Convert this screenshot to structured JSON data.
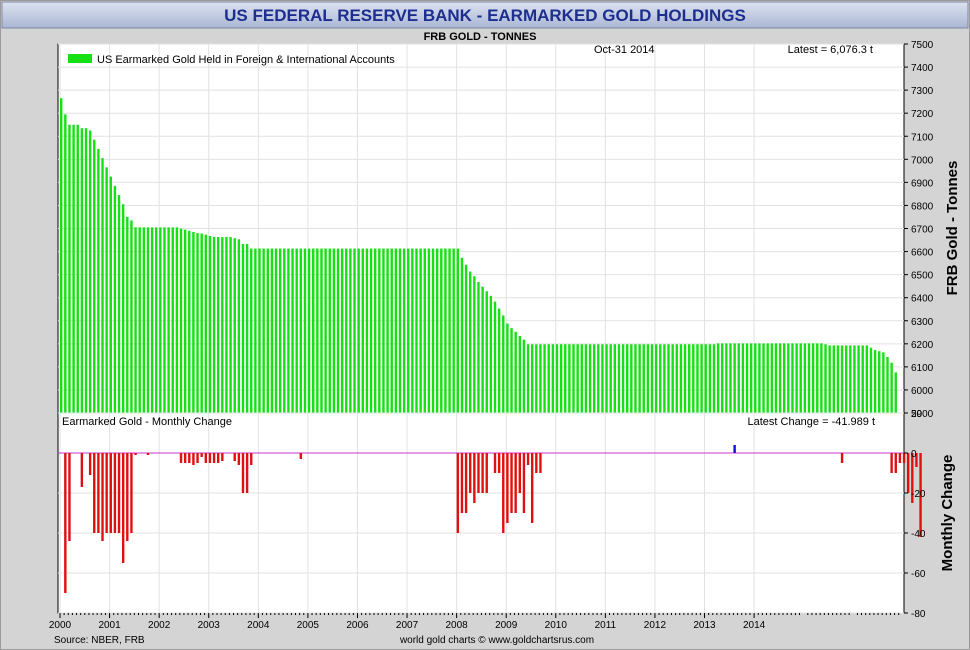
{
  "page": {
    "title": "US FEDERAL RESERVE BANK - EARMARKED GOLD HOLDINGS",
    "subtitle": "FRB GOLD - TONNES",
    "date_label": "Oct-31  2014",
    "latest_label": "Latest = 6,076.3 t",
    "latest_change_label": "Latest Change = -41.989 t",
    "source": "Source: NBER, FRB",
    "credit": "world gold charts © www.goldchartsrus.com"
  },
  "colors": {
    "title_bar_top": "#d6dcec",
    "title_bar_bottom": "#aeb9d6",
    "title_text": "#1c2f8f",
    "frame_bg": "#d4d4d4",
    "bar_green": "#14e014",
    "bar_red": "#e01010",
    "bar_blue": "#1010d0",
    "zero_line": "#cc33cc",
    "grid": "#e2e2e2"
  },
  "chart_data": [
    {
      "type": "bar",
      "title": "FRB GOLD - TONNES",
      "ylabel": "FRB Gold - Tonnes",
      "ylim": [
        5900,
        7500
      ],
      "yticks": [
        5900,
        6000,
        6100,
        6200,
        6300,
        6400,
        6500,
        6600,
        6700,
        6800,
        6900,
        7000,
        7100,
        7200,
        7300,
        7400,
        7500
      ],
      "grid": true,
      "legend": {
        "position": "top-left",
        "entries": [
          "US Earmarked Gold Held in Foreign & International Accounts"
        ]
      },
      "x_start": "2000-01",
      "x_end": "2014-10",
      "xticks": [
        "2000",
        "2001",
        "2002",
        "2003",
        "2004",
        "2005",
        "2006",
        "2007",
        "2008",
        "2009",
        "2010",
        "2011",
        "2012",
        "2013",
        "2014"
      ],
      "series": [
        {
          "name": "US Earmarked Gold Held in Foreign & International Accounts",
          "color": "#14e014",
          "values": [
            7265,
            7195,
            7150,
            7150,
            7150,
            7135,
            7135,
            7125,
            7085,
            7045,
            7005,
            6965,
            6925,
            6885,
            6845,
            6805,
            6750,
            6735,
            6705,
            6705,
            6705,
            6705,
            6705,
            6705,
            6705,
            6705,
            6705,
            6705,
            6705,
            6700,
            6695,
            6690,
            6685,
            6680,
            6678,
            6673,
            6668,
            6663,
            6663,
            6663,
            6663,
            6663,
            6658,
            6653,
            6633,
            6633,
            6613,
            6613,
            6613,
            6613,
            6613,
            6613,
            6613,
            6613,
            6613,
            6613,
            6613,
            6613,
            6613,
            6613,
            6613,
            6613,
            6613,
            6613,
            6613,
            6613,
            6613,
            6613,
            6613,
            6613,
            6613,
            6613,
            6613,
            6613,
            6613,
            6613,
            6613,
            6613,
            6613,
            6613,
            6613,
            6613,
            6613,
            6613,
            6613,
            6613,
            6613,
            6613,
            6613,
            6613,
            6613,
            6613,
            6613,
            6613,
            6613,
            6613,
            6613,
            6573,
            6543,
            6513,
            6493,
            6468,
            6448,
            6428,
            6408,
            6383,
            6353,
            6323,
            6288,
            6268,
            6252,
            6234,
            6218,
            6198,
            6198,
            6198,
            6198,
            6198,
            6198,
            6198,
            6198,
            6198,
            6198,
            6198,
            6198,
            6198,
            6198,
            6198,
            6198,
            6198,
            6198,
            6198,
            6198,
            6198,
            6198,
            6198,
            6198,
            6198,
            6198,
            6198,
            6198,
            6198,
            6198,
            6198,
            6198,
            6198,
            6198,
            6198,
            6198,
            6198,
            6198,
            6198,
            6198,
            6198,
            6198,
            6198,
            6198,
            6198,
            6198,
            6202,
            6202,
            6202,
            6202,
            6202,
            6202,
            6202,
            6202,
            6202,
            6202,
            6202,
            6202,
            6202,
            6202,
            6202,
            6202,
            6202,
            6202,
            6202,
            6202,
            6202,
            6202,
            6202,
            6202,
            6202,
            6202,
            6198,
            6193,
            6193,
            6193,
            6193,
            6193,
            6193,
            6193,
            6193,
            6193,
            6193,
            6183,
            6173,
            6168,
            6163,
            6143,
            6118,
            6076
          ]
        }
      ]
    },
    {
      "type": "bar",
      "title": "Earmarked Gold - Monthly Change",
      "ylabel": "Monthly Change",
      "ylim": [
        -80,
        20
      ],
      "yticks": [
        -80,
        -60,
        -40,
        -20,
        0,
        20
      ],
      "grid": true,
      "x_start": "2000-01",
      "x_end": "2014-10",
      "series": [
        {
          "name": "Earmarked Gold - Monthly Change",
          "positive_color": "#1010d0",
          "negative_color": "#e01010",
          "values": [
            0,
            -70,
            -44,
            0,
            0,
            -17,
            0,
            -11,
            -40,
            -40,
            -44,
            -40,
            -40,
            -40,
            -40,
            -55,
            -44,
            -40,
            -1,
            0,
            0,
            -1,
            0,
            0,
            0,
            0,
            0,
            0,
            0,
            -5,
            -5,
            -5,
            -6,
            -5,
            -2,
            -5,
            -5,
            -5,
            -5,
            -4,
            0,
            0,
            -4,
            -6,
            -20,
            -20,
            -6,
            0,
            0,
            0,
            0,
            0,
            0,
            0,
            0,
            0,
            0,
            0,
            -3,
            0,
            0,
            0,
            0,
            0,
            0,
            0,
            0,
            0,
            0,
            0,
            0,
            0,
            0,
            0,
            0,
            0,
            0,
            0,
            0,
            0,
            0,
            0,
            0,
            0,
            0,
            0,
            0,
            0,
            0,
            0,
            0,
            0,
            0,
            0,
            0,
            0,
            -40,
            -30,
            -30,
            -20,
            -25,
            -20,
            -20,
            -20,
            0,
            -10,
            -10,
            -40,
            -35,
            -30,
            -30,
            -20,
            -30,
            -6,
            -35,
            -10,
            -10,
            0,
            0,
            0,
            0,
            0,
            0,
            0,
            0,
            0,
            0,
            0,
            0,
            0,
            0,
            0,
            0,
            0,
            0,
            0,
            0,
            0,
            0,
            0,
            0,
            0,
            0,
            0,
            0,
            0,
            0,
            0,
            0,
            0,
            0,
            0,
            0,
            0,
            0,
            0,
            0,
            0,
            0,
            0,
            0,
            0,
            0,
            4,
            0,
            0,
            0,
            0,
            0,
            0,
            0,
            0,
            0,
            0,
            0,
            0,
            0,
            0,
            0,
            0,
            0,
            0,
            0,
            0,
            0,
            0,
            0,
            0,
            0,
            -5,
            0,
            0,
            0,
            0,
            0,
            0,
            0,
            0,
            0,
            0,
            0,
            -10,
            -10,
            -5,
            -5,
            -20,
            -25,
            -7,
            -42
          ]
        }
      ]
    }
  ]
}
